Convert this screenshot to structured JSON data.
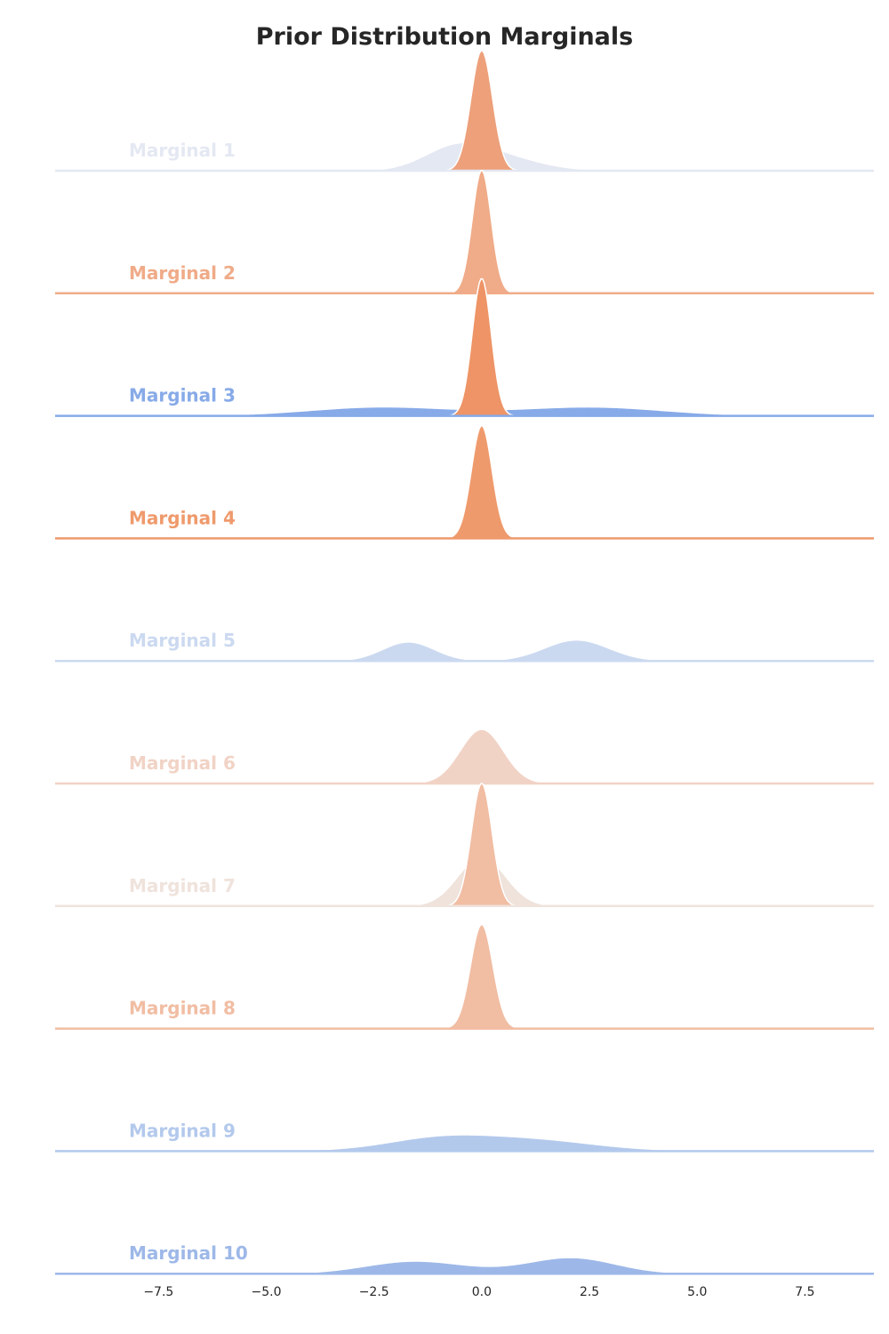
{
  "chart_data": {
    "type": "area",
    "subtype": "ridgeline",
    "title": "Prior Distribution Marginals",
    "xlabel": "",
    "ylabel": "",
    "xlim": [
      -9.9,
      9.1
    ],
    "x_ticks": [
      -7.5,
      -5.0,
      -2.5,
      0.0,
      2.5,
      5.0,
      7.5
    ],
    "x_tick_labels": [
      "−7.5",
      "−5.0",
      "−2.5",
      "0.0",
      "2.5",
      "5.0",
      "7.5"
    ],
    "grid": false,
    "series": [
      {
        "name": "Marginal 1",
        "color": "#e4e8f2",
        "components": [
          {
            "mu": -0.6,
            "sigma": 0.75,
            "w": 0.6
          },
          {
            "mu": 0.5,
            "sigma": 0.9,
            "w": 0.4
          }
        ],
        "overlay": {
          "mu": 0.0,
          "sigma": 0.25,
          "color": "#eda07a",
          "peak_frac": 0.98
        }
      },
      {
        "name": "Marginal 2",
        "color": "#f0ab88",
        "components": [
          {
            "mu": 0.0,
            "sigma": 0.22,
            "w": 1.0
          }
        ]
      },
      {
        "name": "Marginal 3",
        "color": "#87aae8",
        "components": [
          {
            "mu": -2.4,
            "sigma": 1.6,
            "w": 0.45
          },
          {
            "mu": 2.6,
            "sigma": 1.6,
            "w": 0.45
          },
          {
            "mu": 0.0,
            "sigma": 3.2,
            "w": 0.2
          }
        ],
        "overlay": {
          "mu": 0.0,
          "sigma": 0.22,
          "color": "#ee9466",
          "peak_frac": 1.12
        }
      },
      {
        "name": "Marginal 4",
        "color": "#ef9a6c",
        "components": [
          {
            "mu": 0.0,
            "sigma": 0.24,
            "w": 1.0
          }
        ]
      },
      {
        "name": "Marginal 5",
        "color": "#cbd9f0",
        "components": [
          {
            "mu": -1.7,
            "sigma": 0.6,
            "w": 0.42
          },
          {
            "mu": 2.2,
            "sigma": 0.75,
            "w": 0.58
          }
        ]
      },
      {
        "name": "Marginal 6",
        "color": "#f1d3c6",
        "components": [
          {
            "mu": 0.0,
            "sigma": 0.5,
            "w": 1.0
          }
        ]
      },
      {
        "name": "Marginal 7",
        "color": "#efe3dc",
        "components": [
          {
            "mu": 0.0,
            "sigma": 0.55,
            "w": 1.0
          }
        ],
        "overlay": {
          "mu": 0.0,
          "sigma": 0.24,
          "color": "#f1bda3",
          "peak_frac": 1.0
        }
      },
      {
        "name": "Marginal 8",
        "color": "#f1bda3",
        "components": [
          {
            "mu": 0.0,
            "sigma": 0.26,
            "w": 1.0
          }
        ]
      },
      {
        "name": "Marginal 9",
        "color": "#b3c9ec",
        "components": [
          {
            "mu": -1.0,
            "sigma": 1.2,
            "w": 0.5
          },
          {
            "mu": 1.2,
            "sigma": 1.4,
            "w": 0.5
          },
          {
            "mu": 0.0,
            "sigma": 3.0,
            "w": 0.15
          }
        ]
      },
      {
        "name": "Marginal 10",
        "color": "#9db8e8",
        "components": [
          {
            "mu": -1.6,
            "sigma": 1.1,
            "w": 0.45
          },
          {
            "mu": 2.1,
            "sigma": 1.0,
            "w": 0.55
          },
          {
            "mu": 0.0,
            "sigma": 2.0,
            "w": 0.15
          }
        ]
      }
    ]
  }
}
